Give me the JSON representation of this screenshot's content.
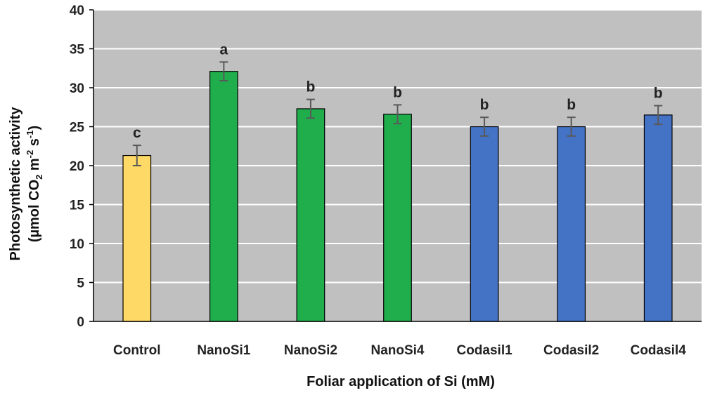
{
  "chart_data": {
    "type": "bar",
    "title": "",
    "categories": [
      "Control",
      "NanoSi1",
      "NanoSi2",
      "NanoSi4",
      "Codasil1",
      "Codasil2",
      "Codasil4"
    ],
    "values": [
      21.3,
      32.1,
      27.3,
      26.6,
      25.0,
      25.0,
      26.5
    ],
    "errors": [
      1.3,
      1.2,
      1.2,
      1.2,
      1.2,
      1.2,
      1.2
    ],
    "significance_letters": [
      "c",
      "a",
      "b",
      "b",
      "b",
      "b",
      "b"
    ],
    "bar_colors": [
      "#FFD966",
      "#1FAE4B",
      "#1FAE4B",
      "#1FAE4B",
      "#4472C4",
      "#4472C4",
      "#4472C4"
    ],
    "xlabel": "Foliar application of Si (mM)",
    "ylabel_line1": "Photosynthetic activity",
    "ylabel_line2": {
      "pre": "(µmol CO",
      "sub": "2",
      "mid": " m",
      "sup1": "-2",
      "mid2": " s",
      "sup2": "-1",
      "post": ")"
    },
    "ylim": [
      0,
      40
    ],
    "yticks": [
      0,
      5,
      10,
      15,
      20,
      25,
      30,
      35,
      40
    ],
    "grid": true,
    "plot_background": "#C0C0C0",
    "gridline_color": "#FFFFFF",
    "errorbar_color": "#595959"
  }
}
